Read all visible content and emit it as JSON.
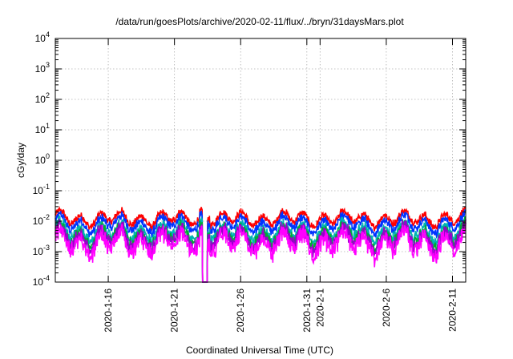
{
  "chart_data": {
    "type": "line",
    "title": "/data/run/goesPlots/archive/2020-02-11/flux/../bryn/31daysMars.plot",
    "xlabel": "Coordinated Universal Time (UTC)",
    "ylabel": "cGy/day",
    "y_scale": "log",
    "ylim": [
      0.0001,
      10000
    ],
    "xlim_days": [
      "2020-01-12",
      "2020-02-12"
    ],
    "y_ticks": [
      {
        "base": "10",
        "exp": "-4"
      },
      {
        "base": "10",
        "exp": "-3"
      },
      {
        "base": "10",
        "exp": "-2"
      },
      {
        "base": "10",
        "exp": "-1"
      },
      {
        "base": "10",
        "exp": "0"
      },
      {
        "base": "10",
        "exp": "1"
      },
      {
        "base": "10",
        "exp": "2"
      },
      {
        "base": "10",
        "exp": "3"
      },
      {
        "base": "10",
        "exp": "4"
      }
    ],
    "x_ticks": [
      "2020-1-16",
      "2020-1-21",
      "2020-1-26",
      "2020-1-31",
      "2020-2-1",
      "2020-2-6",
      "2020-2-11"
    ],
    "grid": true,
    "dropout_date": "2020-01-23",
    "series": [
      {
        "color": "#ff0000",
        "baseline": 0.012
      },
      {
        "color": "#0033ff",
        "baseline": 0.008
      },
      {
        "color": "#00b3b3",
        "baseline": 0.0045
      },
      {
        "color": "#00aa33",
        "baseline": 0.0033
      },
      {
        "color": "#9900cc",
        "baseline": 0.0027
      },
      {
        "color": "#ff00ff",
        "baseline": 0.0019
      }
    ]
  }
}
